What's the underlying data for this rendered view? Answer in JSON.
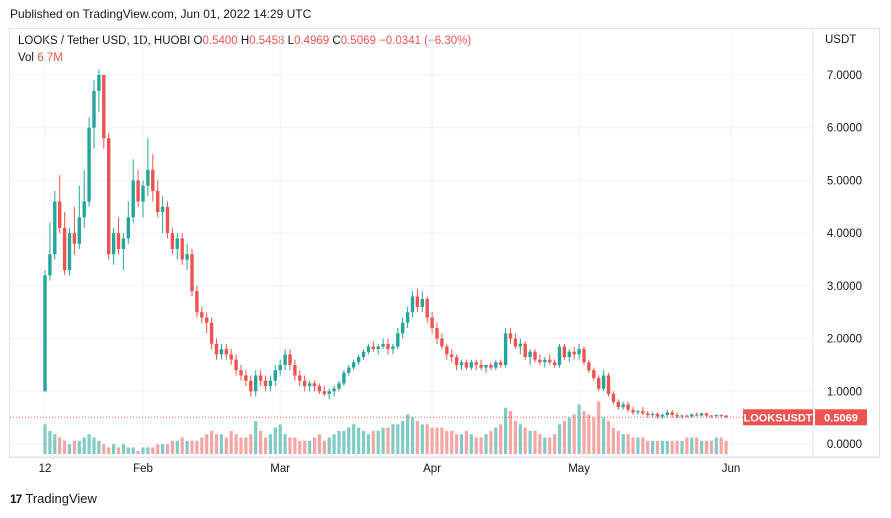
{
  "published": "Published on TradingView.com, Jun 01, 2022 14:29 UTC",
  "legend": {
    "symbol": "LOOKS / Tether USD, 1D, HUOBI",
    "o_label": "O",
    "o": "0.5400",
    "h_label": "H",
    "h": "0.5458",
    "l_label": "L",
    "l": "0.4969",
    "c_label": "C",
    "c": "0.5069",
    "change": "−0.0341 (−6.30%)",
    "vol_label": "Vol",
    "vol": "6.7M"
  },
  "currency": "USDT",
  "price_tag": {
    "symbol": "LOOKSUSDT",
    "value": "0.5069"
  },
  "brand": "TradingView",
  "colors": {
    "up": "#26a69a",
    "down": "#ef5350",
    "up_vol": "#80cbc4",
    "down_vol": "#f5a6a4",
    "tag": "#ef5350"
  },
  "chart_data": {
    "type": "candlestick",
    "y_ticks": [
      "7.0000",
      "6.0000",
      "5.0000",
      "4.0000",
      "3.0000",
      "2.0000",
      "1.0000",
      "0.0000"
    ],
    "ylim": [
      0,
      7
    ],
    "x_ticks": [
      "12",
      "Feb",
      "Mar",
      "Apr",
      "May",
      "Jun"
    ],
    "x_tick_index": [
      0,
      20,
      48,
      79,
      109,
      140
    ],
    "last_close": 0.5069,
    "candles": [
      [
        1.0,
        3.3,
        1.0,
        3.2
      ],
      [
        3.2,
        4.2,
        3.1,
        3.6
      ],
      [
        3.6,
        4.8,
        3.5,
        4.6
      ],
      [
        4.6,
        5.1,
        4.0,
        4.1
      ],
      [
        4.1,
        4.4,
        3.2,
        3.3
      ],
      [
        3.3,
        4.1,
        3.2,
        4.0
      ],
      [
        4.0,
        4.5,
        3.6,
        3.8
      ],
      [
        3.8,
        4.9,
        3.7,
        4.3
      ],
      [
        4.3,
        5.2,
        4.1,
        4.6
      ],
      [
        4.6,
        6.2,
        4.5,
        6.0
      ],
      [
        6.0,
        6.9,
        5.6,
        6.7
      ],
      [
        6.7,
        7.1,
        6.3,
        7.0
      ],
      [
        7.0,
        7.0,
        5.6,
        5.8
      ],
      [
        5.8,
        5.9,
        3.5,
        3.6
      ],
      [
        3.6,
        4.1,
        3.4,
        4.0
      ],
      [
        4.0,
        4.3,
        3.6,
        3.7
      ],
      [
        3.7,
        4.0,
        3.3,
        3.9
      ],
      [
        3.9,
        4.6,
        3.8,
        4.3
      ],
      [
        4.3,
        5.4,
        4.2,
        5.0
      ],
      [
        5.0,
        5.2,
        4.5,
        4.6
      ],
      [
        4.6,
        5.0,
        4.3,
        4.9
      ],
      [
        4.9,
        5.8,
        4.7,
        5.2
      ],
      [
        5.2,
        5.5,
        4.6,
        4.8
      ],
      [
        4.8,
        5.0,
        4.3,
        4.4
      ],
      [
        4.4,
        4.7,
        4.0,
        4.5
      ],
      [
        4.5,
        4.6,
        3.9,
        4.0
      ],
      [
        4.0,
        4.1,
        3.6,
        3.7
      ],
      [
        3.7,
        4.0,
        3.5,
        3.9
      ],
      [
        3.9,
        4.0,
        3.4,
        3.5
      ],
      [
        3.5,
        3.8,
        3.3,
        3.6
      ],
      [
        3.6,
        3.7,
        2.8,
        2.9
      ],
      [
        2.9,
        3.0,
        2.4,
        2.5
      ],
      [
        2.5,
        2.6,
        2.3,
        2.4
      ],
      [
        2.4,
        2.5,
        2.1,
        2.3
      ],
      [
        2.3,
        2.4,
        1.8,
        1.9
      ],
      [
        1.9,
        2.0,
        1.6,
        1.7
      ],
      [
        1.7,
        1.9,
        1.6,
        1.8
      ],
      [
        1.8,
        1.9,
        1.6,
        1.7
      ],
      [
        1.7,
        1.8,
        1.5,
        1.6
      ],
      [
        1.6,
        1.7,
        1.3,
        1.4
      ],
      [
        1.4,
        1.5,
        1.2,
        1.3
      ],
      [
        1.3,
        1.4,
        1.1,
        1.2
      ],
      [
        1.2,
        1.3,
        0.9,
        1.0
      ],
      [
        1.0,
        1.4,
        0.9,
        1.3
      ],
      [
        1.3,
        1.4,
        1.1,
        1.2
      ],
      [
        1.2,
        1.3,
        1.0,
        1.1
      ],
      [
        1.1,
        1.3,
        1.0,
        1.2
      ],
      [
        1.2,
        1.5,
        1.1,
        1.4
      ],
      [
        1.4,
        1.6,
        1.3,
        1.5
      ],
      [
        1.5,
        1.8,
        1.4,
        1.7
      ],
      [
        1.7,
        1.8,
        1.4,
        1.5
      ],
      [
        1.5,
        1.6,
        1.2,
        1.3
      ],
      [
        1.3,
        1.4,
        1.1,
        1.2
      ],
      [
        1.2,
        1.3,
        1.0,
        1.1
      ],
      [
        1.1,
        1.2,
        1.0,
        1.15
      ],
      [
        1.15,
        1.2,
        1.0,
        1.1
      ],
      [
        1.1,
        1.15,
        0.95,
        1.0
      ],
      [
        1.0,
        1.1,
        0.9,
        0.95
      ],
      [
        0.95,
        1.05,
        0.85,
        1.0
      ],
      [
        1.0,
        1.1,
        0.9,
        1.05
      ],
      [
        1.05,
        1.2,
        1.0,
        1.15
      ],
      [
        1.15,
        1.4,
        1.1,
        1.35
      ],
      [
        1.35,
        1.5,
        1.3,
        1.45
      ],
      [
        1.45,
        1.6,
        1.4,
        1.55
      ],
      [
        1.55,
        1.7,
        1.5,
        1.65
      ],
      [
        1.65,
        1.8,
        1.6,
        1.75
      ],
      [
        1.75,
        1.9,
        1.7,
        1.85
      ],
      [
        1.85,
        1.95,
        1.75,
        1.8
      ],
      [
        1.8,
        1.9,
        1.7,
        1.85
      ],
      [
        1.85,
        2.0,
        1.8,
        1.9
      ],
      [
        1.9,
        2.0,
        1.7,
        1.8
      ],
      [
        1.8,
        1.9,
        1.7,
        1.85
      ],
      [
        1.85,
        2.2,
        1.8,
        2.1
      ],
      [
        2.1,
        2.4,
        2.0,
        2.3
      ],
      [
        2.3,
        2.6,
        2.2,
        2.5
      ],
      [
        2.5,
        2.9,
        2.4,
        2.8
      ],
      [
        2.8,
        2.95,
        2.5,
        2.6
      ],
      [
        2.6,
        2.9,
        2.5,
        2.75
      ],
      [
        2.75,
        2.8,
        2.3,
        2.4
      ],
      [
        2.4,
        2.5,
        2.1,
        2.2
      ],
      [
        2.2,
        2.3,
        1.9,
        2.0
      ],
      [
        2.0,
        2.1,
        1.8,
        1.85
      ],
      [
        1.85,
        1.9,
        1.6,
        1.7
      ],
      [
        1.7,
        1.8,
        1.55,
        1.65
      ],
      [
        1.65,
        1.7,
        1.4,
        1.5
      ],
      [
        1.5,
        1.6,
        1.4,
        1.55
      ],
      [
        1.55,
        1.6,
        1.4,
        1.45
      ],
      [
        1.45,
        1.6,
        1.4,
        1.55
      ],
      [
        1.55,
        1.6,
        1.4,
        1.5
      ],
      [
        1.5,
        1.6,
        1.4,
        1.45
      ],
      [
        1.45,
        1.5,
        1.35,
        1.5
      ],
      [
        1.5,
        1.55,
        1.4,
        1.45
      ],
      [
        1.45,
        1.6,
        1.4,
        1.55
      ],
      [
        1.55,
        1.6,
        1.45,
        1.5
      ],
      [
        1.5,
        2.2,
        1.45,
        2.1
      ],
      [
        2.1,
        2.2,
        1.9,
        2.0
      ],
      [
        2.0,
        2.1,
        1.8,
        1.85
      ],
      [
        1.85,
        2.0,
        1.7,
        1.9
      ],
      [
        1.9,
        1.95,
        1.6,
        1.65
      ],
      [
        1.65,
        1.8,
        1.5,
        1.75
      ],
      [
        1.75,
        1.8,
        1.55,
        1.6
      ],
      [
        1.6,
        1.7,
        1.5,
        1.55
      ],
      [
        1.55,
        1.65,
        1.45,
        1.6
      ],
      [
        1.6,
        1.7,
        1.5,
        1.55
      ],
      [
        1.55,
        1.6,
        1.45,
        1.5
      ],
      [
        1.5,
        1.9,
        1.45,
        1.85
      ],
      [
        1.85,
        1.9,
        1.6,
        1.65
      ],
      [
        1.65,
        1.8,
        1.55,
        1.75
      ],
      [
        1.75,
        1.85,
        1.6,
        1.7
      ],
      [
        1.7,
        1.9,
        1.6,
        1.8
      ],
      [
        1.8,
        1.85,
        1.5,
        1.55
      ],
      [
        1.55,
        1.6,
        1.35,
        1.4
      ],
      [
        1.4,
        1.45,
        1.2,
        1.25
      ],
      [
        1.25,
        1.3,
        1.0,
        1.05
      ],
      [
        1.05,
        1.4,
        1.0,
        1.3
      ],
      [
        1.3,
        1.35,
        0.9,
        0.95
      ],
      [
        0.95,
        1.0,
        0.75,
        0.8
      ],
      [
        0.8,
        0.85,
        0.65,
        0.7
      ],
      [
        0.7,
        0.8,
        0.65,
        0.75
      ],
      [
        0.75,
        0.8,
        0.6,
        0.65
      ],
      [
        0.65,
        0.7,
        0.55,
        0.6
      ],
      [
        0.6,
        0.65,
        0.55,
        0.62
      ],
      [
        0.62,
        0.7,
        0.55,
        0.58
      ],
      [
        0.58,
        0.62,
        0.5,
        0.55
      ],
      [
        0.55,
        0.6,
        0.5,
        0.57
      ],
      [
        0.57,
        0.6,
        0.48,
        0.52
      ],
      [
        0.52,
        0.58,
        0.48,
        0.55
      ],
      [
        0.55,
        0.65,
        0.5,
        0.6
      ],
      [
        0.6,
        0.65,
        0.5,
        0.55
      ],
      [
        0.55,
        0.6,
        0.48,
        0.52
      ],
      [
        0.52,
        0.56,
        0.48,
        0.54
      ],
      [
        0.54,
        0.56,
        0.5,
        0.52
      ],
      [
        0.52,
        0.58,
        0.5,
        0.56
      ],
      [
        0.56,
        0.6,
        0.52,
        0.54
      ],
      [
        0.54,
        0.6,
        0.52,
        0.58
      ],
      [
        0.58,
        0.6,
        0.5,
        0.54
      ],
      [
        0.54,
        0.55,
        0.5,
        0.53
      ],
      [
        0.53,
        0.56,
        0.5,
        0.55
      ],
      [
        0.55,
        0.56,
        0.5,
        0.54
      ],
      [
        0.54,
        0.5458,
        0.4969,
        0.5069
      ]
    ],
    "volumes": [
      9,
      7,
      6,
      5,
      4,
      3,
      4,
      4,
      5,
      6,
      5,
      4,
      3,
      2,
      3,
      2,
      3,
      2,
      2,
      1,
      2,
      2,
      2,
      3,
      3,
      3,
      4,
      4,
      5,
      4,
      4,
      4,
      5,
      6,
      7,
      6,
      6,
      5,
      7,
      6,
      5,
      5,
      6,
      10,
      7,
      5,
      6,
      8,
      9,
      6,
      5,
      5,
      4,
      4,
      4,
      5,
      6,
      4,
      5,
      6,
      7,
      7,
      8,
      9,
      8,
      7,
      6,
      7,
      7,
      8,
      8,
      9,
      9,
      10,
      12,
      11,
      10,
      9,
      9,
      8,
      8,
      8,
      7,
      7,
      6,
      6,
      7,
      6,
      5,
      5,
      6,
      7,
      8,
      9,
      14,
      13,
      10,
      9,
      8,
      7,
      7,
      6,
      5,
      5,
      6,
      9,
      10,
      11,
      12,
      15,
      13,
      12,
      11,
      16,
      11,
      10,
      8,
      7,
      6,
      6,
      5,
      5,
      5,
      4,
      4,
      4,
      4,
      4,
      4,
      4,
      4,
      5,
      5,
      5,
      4,
      4,
      4,
      5,
      5,
      4,
      5,
      5,
      3,
      5,
      6,
      4,
      4,
      4
    ]
  }
}
